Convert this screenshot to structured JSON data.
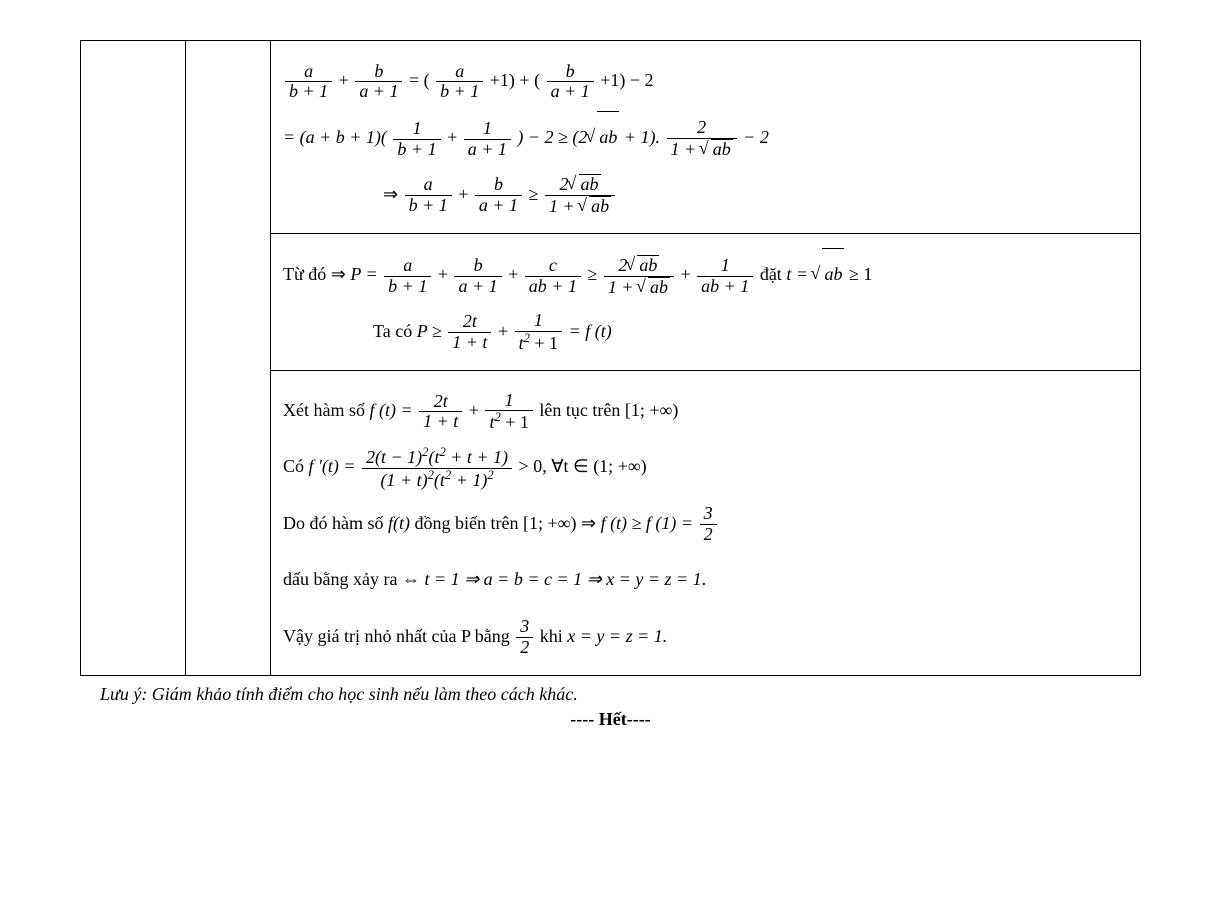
{
  "cell1": {
    "line1_a": "a",
    "line1_b": "b",
    "line1_bp1": "b + 1",
    "line1_ap1": "a + 1",
    "line1_rhs_a": "a",
    "line1_rhs_b": "b",
    "line1_plus1a": "+1) + (",
    "line1_plus1b": "+1) − 2",
    "line2_pre": "= (a + b + 1)(",
    "line2_1a": "1",
    "line2_bp1": "b + 1",
    "line2_1b": "1",
    "line2_ap1": "a + 1",
    "line2_mid": ") − 2 ≥ (2",
    "line2_ab": "ab",
    "line2_post1": " + 1).",
    "line2_2": "2",
    "line2_1sqab": "1 + ",
    "line2_m2": " − 2",
    "line3_arrow": "⇒ ",
    "line3_a": "a",
    "line3_bp1": "b + 1",
    "line3_b": "b",
    "line3_ap1": "a + 1",
    "line3_ge": " ≥ ",
    "line3_2sq": "2",
    "line3_ab": "ab",
    "line3_1p": "1 + "
  },
  "cell2": {
    "text1": "Từ đó ⇒ ",
    "P": "P = ",
    "a": "a",
    "bp1": "b + 1",
    "b": "b",
    "ap1": "a + 1",
    "c": "c",
    "abp1": "ab + 1",
    "ge": " ≥ ",
    "two": "2",
    "ab": "ab",
    "onep": "1 + ",
    "one": "1",
    "settext": " đặt ",
    "teq": "t = ",
    "ge1": " ≥ 1",
    "taco": "Ta có ",
    "Pge": "P ≥ ",
    "t2": "2t",
    "onept": "1 + t",
    "t2p1": "t",
    "eqft": " = f (t)"
  },
  "cell3": {
    "xet": "Xét hàm số ",
    "ft": "f (t) = ",
    "t2": "2t",
    "onept": "1 + t",
    "one": "1",
    "t2p1": "t",
    "lt": " lên tục trên ",
    "interval": "[1; +∞)",
    "co": " Có ",
    "fpr": "f '(t) = ",
    "num": "2(t − 1)",
    "num2": "(t",
    "num3": " + t + 1)",
    "den": "(1 + t)",
    "den2": "(t",
    "den3": " + 1)",
    "gt0": " > 0, ∀t ∈ (1; +∞)",
    "dodo": "Do đó hàm số ",
    "fti": "f(t)",
    "dongbien": " đồng biến trên ",
    "arr": " ⇒ ",
    "ftge": "f (t) ≥ f (1) = ",
    "th": "3",
    "tw": "2",
    "dau": "dấu bằng xảy ra  ⇔ ",
    "teq1": "t = 1 ⇒ a = b = c = 1 ⇒ x = y = z = 1",
    "dot": ".",
    "vay": "Vậy giá trị nhỏ nhất của P bằng ",
    "khi": " khi ",
    "xyz": "x = y = z = 1."
  },
  "note": "Lưu ý: Giám khảo tính điểm cho học sinh nếu làm theo cách khác.",
  "end": "---- Hết----"
}
